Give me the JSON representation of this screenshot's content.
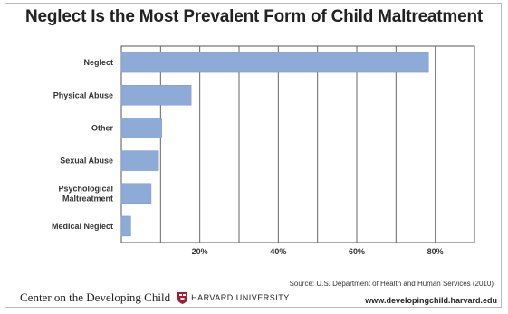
{
  "chart_data": {
    "type": "bar",
    "orientation": "horizontal",
    "title": "Neglect Is the Most Prevalent Form of Child Maltreatment",
    "categories": [
      "Neglect",
      "Physical Abuse",
      "Other",
      "Sexual Abuse",
      "Psychological Maltreatment",
      "Medical Neglect"
    ],
    "values": [
      78.3,
      17.8,
      10.3,
      9.5,
      7.6,
      2.4
    ],
    "xlim": [
      0,
      90
    ],
    "xticks": [
      20,
      40,
      60,
      80
    ],
    "xtick_labels": [
      "20%",
      "40%",
      "60%",
      "80%"
    ],
    "grid": true,
    "bar_color": "#8eaad6"
  },
  "source": "Source: U.S. Department of Health and Human Services (2010)",
  "footer": {
    "org": "Center on the Developing Child",
    "university": "HARVARD UNIVERSITY",
    "url": "www.developingchild.harvard.edu",
    "logo_icon": "harvard-shield-icon"
  }
}
